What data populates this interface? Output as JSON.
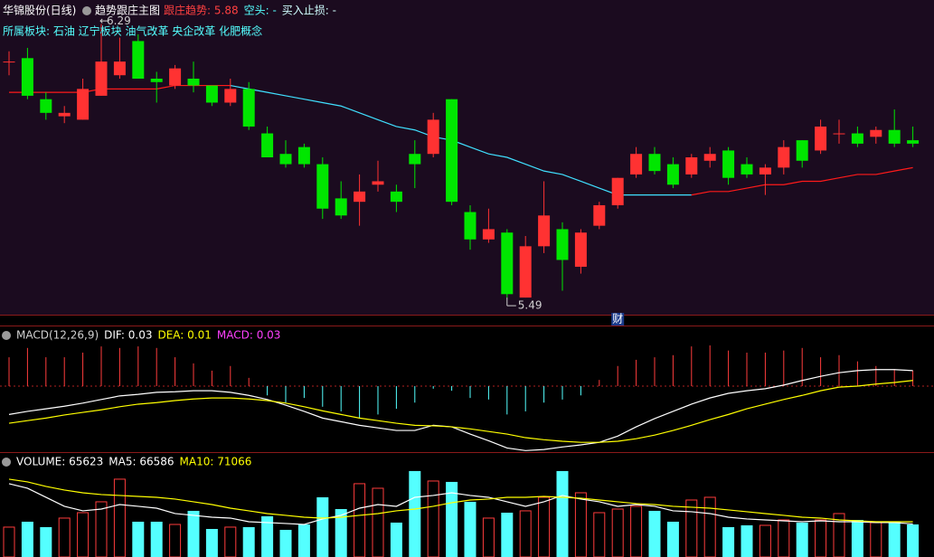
{
  "header": {
    "stock": "华锦股份(日线)",
    "indicator": "趋势跟庄主图",
    "trend": "跟庄趋势: 5.88",
    "short": "空头: -",
    "stop": "买入止损: -",
    "sector": "所属板块: 石油 辽宁板块 油气改革 央企改革 化肥概念"
  },
  "chart_data": [
    {
      "type": "candlestick",
      "up_color": "#ff3232",
      "down_color": "#00e600",
      "ylim": [
        5.44,
        6.36
      ],
      "open": [
        6.18,
        6.19,
        6.07,
        6.02,
        6.01,
        6.08,
        6.14,
        6.24,
        6.13,
        6.11,
        6.13,
        6.11,
        6.06,
        6.1,
        5.97,
        5.91,
        5.93,
        5.88,
        5.78,
        5.77,
        5.82,
        5.8,
        5.91,
        5.91,
        6.07,
        5.74,
        5.66,
        5.68,
        5.49,
        5.64,
        5.69,
        5.58,
        5.7,
        5.76,
        5.85,
        5.91,
        5.88,
        5.85,
        5.89,
        5.92,
        5.88,
        5.85,
        5.87,
        5.95,
        5.92,
        5.97,
        5.97,
        5.96,
        5.98,
        5.95
      ],
      "high": [
        6.21,
        6.22,
        6.09,
        6.05,
        6.13,
        6.29,
        6.25,
        6.26,
        6.15,
        6.17,
        6.18,
        6.11,
        6.13,
        6.12,
        5.99,
        5.95,
        5.94,
        5.9,
        5.83,
        5.85,
        5.89,
        5.82,
        5.95,
        6.03,
        6.07,
        5.76,
        5.75,
        5.69,
        5.67,
        5.83,
        5.71,
        5.69,
        5.77,
        5.84,
        5.93,
        5.93,
        5.9,
        5.91,
        5.93,
        5.93,
        5.9,
        5.88,
        5.95,
        5.95,
        6.01,
        6.01,
        5.99,
        5.99,
        6.04,
        5.99
      ],
      "low": [
        6.14,
        6.07,
        6.01,
        6.0,
        6.01,
        6.08,
        6.13,
        6.13,
        6.06,
        6.1,
        6.09,
        6.05,
        6.05,
        5.98,
        5.9,
        5.87,
        5.87,
        5.72,
        5.72,
        5.7,
        5.8,
        5.74,
        5.81,
        5.9,
        5.76,
        5.63,
        5.65,
        5.49,
        5.49,
        5.62,
        5.51,
        5.56,
        5.69,
        5.75,
        5.84,
        5.85,
        5.81,
        5.84,
        5.87,
        5.82,
        5.84,
        5.79,
        5.85,
        5.87,
        5.91,
        5.94,
        5.93,
        5.94,
        5.93,
        5.93
      ],
      "close": [
        6.18,
        6.08,
        6.03,
        6.03,
        6.1,
        6.18,
        6.18,
        6.13,
        6.12,
        6.16,
        6.11,
        6.06,
        6.1,
        5.99,
        5.9,
        5.88,
        5.88,
        5.75,
        5.73,
        5.8,
        5.83,
        5.77,
        5.88,
        6.01,
        5.77,
        5.66,
        5.69,
        5.5,
        5.64,
        5.73,
        5.6,
        5.68,
        5.76,
        5.84,
        5.91,
        5.86,
        5.82,
        5.9,
        5.91,
        5.84,
        5.85,
        5.87,
        5.93,
        5.89,
        5.99,
        5.97,
        5.94,
        5.98,
        5.94,
        5.94
      ],
      "trend_line": {
        "up_color": "#ff1a1a",
        "down_color": "#40e0ff",
        "values": [
          6.09,
          6.09,
          6.09,
          6.09,
          6.09,
          6.1,
          6.1,
          6.1,
          6.1,
          6.11,
          6.11,
          6.11,
          6.11,
          6.1,
          6.09,
          6.08,
          6.07,
          6.06,
          6.05,
          6.03,
          6.01,
          5.99,
          5.98,
          5.96,
          5.95,
          5.93,
          5.91,
          5.9,
          5.88,
          5.86,
          5.85,
          5.83,
          5.81,
          5.79,
          5.79,
          5.79,
          5.79,
          5.79,
          5.8,
          5.8,
          5.81,
          5.82,
          5.82,
          5.83,
          5.83,
          5.84,
          5.85,
          5.85,
          5.86,
          5.87
        ]
      },
      "annotations": [
        {
          "text": "6.29",
          "index": 5
        },
        {
          "text": "5.49",
          "index": 27
        },
        {
          "text": "财",
          "index": 33
        }
      ]
    },
    {
      "type": "macd",
      "title": "MACD(12,26,9)",
      "ylim": [
        -0.128,
        0.114
      ],
      "bar_name": "MACD: 0.03",
      "bar_name_color": "#ff40ff",
      "up_color": "#ff3c3c",
      "down_color": "#54ffff",
      "values": [
        0.056,
        0.074,
        0.056,
        0.056,
        0.065,
        0.077,
        0.074,
        0.077,
        0.074,
        0.056,
        0.044,
        0.03,
        0.039,
        0.016,
        -0.018,
        -0.032,
        -0.023,
        -0.04,
        -0.049,
        -0.062,
        -0.055,
        -0.044,
        -0.032,
        -0.005,
        -0.009,
        -0.023,
        -0.026,
        -0.055,
        -0.049,
        -0.032,
        -0.026,
        -0.018,
        0.012,
        0.039,
        0.051,
        0.056,
        0.06,
        0.077,
        0.079,
        0.069,
        0.065,
        0.065,
        0.069,
        0.074,
        0.056,
        0.06,
        0.048,
        0.039,
        0.033,
        0.03
      ],
      "series": [
        {
          "name": "DIF: 0.03",
          "color": "#ffffff",
          "values": [
            -0.055,
            -0.049,
            -0.044,
            -0.039,
            -0.033,
            -0.026,
            -0.019,
            -0.016,
            -0.012,
            -0.011,
            -0.009,
            -0.009,
            -0.012,
            -0.018,
            -0.026,
            -0.037,
            -0.049,
            -0.062,
            -0.069,
            -0.076,
            -0.081,
            -0.086,
            -0.086,
            -0.076,
            -0.079,
            -0.093,
            -0.106,
            -0.12,
            -0.125,
            -0.123,
            -0.118,
            -0.114,
            -0.109,
            -0.097,
            -0.079,
            -0.063,
            -0.049,
            -0.035,
            -0.023,
            -0.014,
            -0.009,
            -0.005,
            0.002,
            0.011,
            0.019,
            0.026,
            0.03,
            0.032,
            0.032,
            0.03
          ]
        },
        {
          "name": "DEA: 0.01",
          "color": "#ffff00",
          "values": [
            -0.072,
            -0.067,
            -0.062,
            -0.056,
            -0.051,
            -0.046,
            -0.04,
            -0.035,
            -0.032,
            -0.028,
            -0.025,
            -0.023,
            -0.023,
            -0.025,
            -0.028,
            -0.033,
            -0.04,
            -0.048,
            -0.055,
            -0.062,
            -0.067,
            -0.072,
            -0.076,
            -0.077,
            -0.079,
            -0.083,
            -0.088,
            -0.093,
            -0.1,
            -0.104,
            -0.107,
            -0.109,
            -0.109,
            -0.107,
            -0.102,
            -0.095,
            -0.086,
            -0.076,
            -0.065,
            -0.055,
            -0.044,
            -0.035,
            -0.026,
            -0.018,
            -0.009,
            -0.002,
            0,
            0.004,
            0.007,
            0.011
          ]
        }
      ]
    },
    {
      "type": "volume",
      "title": "VOLUME: 65623",
      "ylim": [
        0,
        184000
      ],
      "up_color": "#ff3c3c",
      "down_color": "#54ffff",
      "values": [
        60200,
        71100,
        60200,
        78400,
        89300,
        111200,
        156800,
        71100,
        71100,
        65600,
        93000,
        56500,
        60200,
        60200,
        82000,
        54700,
        65600,
        120300,
        96600,
        147700,
        138500,
        69300,
        173200,
        153100,
        151300,
        111200,
        78400,
        89300,
        93000,
        120300,
        173200,
        129400,
        89300,
        96600,
        102100,
        93000,
        71100,
        114800,
        120300,
        60200,
        63800,
        63800,
        74700,
        69300,
        74700,
        87500,
        74700,
        69300,
        71100,
        65623
      ],
      "series": [
        {
          "name": "MA5: 66586",
          "color": "#ffffff",
          "values": [
            147700,
            138500,
            120300,
            102100,
            93000,
            96600,
            105700,
            102100,
            98400,
            87500,
            83900,
            80200,
            78400,
            71100,
            69300,
            67500,
            65600,
            76600,
            83900,
            98400,
            105700,
            102100,
            120300,
            124000,
            129400,
            124000,
            120300,
            111200,
            102100,
            111200,
            124000,
            116700,
            111200,
            102100,
            105700,
            102100,
            93000,
            91200,
            87500,
            80200,
            76600,
            74700,
            72900,
            71100,
            72900,
            71100,
            71100,
            69300,
            69300,
            66586
          ]
        },
        {
          "name": "MA10: 71066",
          "color": "#ffff00",
          "values": [
            156800,
            151300,
            142200,
            134900,
            129400,
            125800,
            124000,
            122100,
            120300,
            116700,
            111200,
            105700,
            98400,
            93000,
            87500,
            83900,
            80200,
            78400,
            80200,
            83900,
            87500,
            93000,
            96600,
            102100,
            109400,
            114800,
            116700,
            120300,
            120300,
            122100,
            120300,
            118500,
            114800,
            111200,
            107600,
            105700,
            102100,
            100300,
            98400,
            94800,
            91200,
            87500,
            83900,
            80200,
            78400,
            74700,
            72900,
            71100,
            71100,
            71066
          ]
        }
      ]
    }
  ]
}
